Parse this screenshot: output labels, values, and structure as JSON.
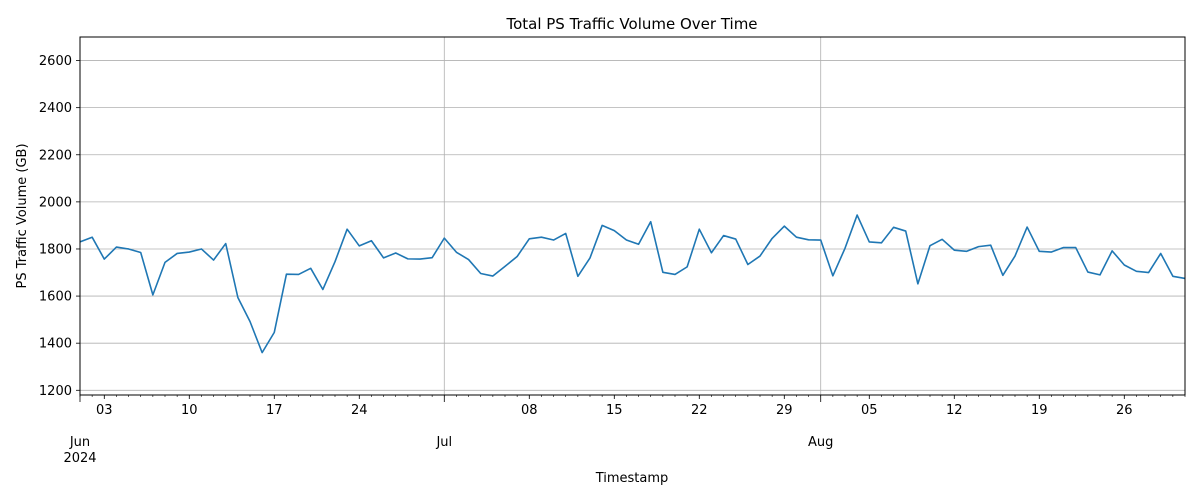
{
  "chart_data": {
    "type": "line",
    "title": "Total PS Traffic Volume Over Time",
    "xlabel": "Timestamp",
    "ylabel": "PS Traffic Volume (GB)",
    "ylim": [
      1180,
      2700
    ],
    "yticks": [
      1200,
      1400,
      1600,
      1800,
      2000,
      2200,
      2400,
      2600
    ],
    "grid": true,
    "line_color": "#1f77b4",
    "x_start_label": "2024-06-01",
    "x_end_label": "2024-08-31",
    "major_ticks": [
      {
        "date": "2024-06-01",
        "label": "Jun",
        "sublabel": "2024"
      },
      {
        "date": "2024-07-01",
        "label": "Jul",
        "sublabel": ""
      },
      {
        "date": "2024-08-01",
        "label": "Aug",
        "sublabel": ""
      }
    ],
    "minor_ticks": [
      {
        "date": "2024-06-03",
        "label": "03"
      },
      {
        "date": "2024-06-10",
        "label": "10"
      },
      {
        "date": "2024-06-17",
        "label": "17"
      },
      {
        "date": "2024-06-24",
        "label": "24"
      },
      {
        "date": "2024-07-08",
        "label": "08"
      },
      {
        "date": "2024-07-15",
        "label": "15"
      },
      {
        "date": "2024-07-22",
        "label": "22"
      },
      {
        "date": "2024-07-29",
        "label": "29"
      },
      {
        "date": "2024-08-05",
        "label": "05"
      },
      {
        "date": "2024-08-12",
        "label": "12"
      },
      {
        "date": "2024-08-19",
        "label": "19"
      },
      {
        "date": "2024-08-26",
        "label": "26"
      }
    ],
    "series": [
      {
        "name": "",
        "values": [
          1830,
          1850,
          1757,
          1808,
          1800,
          1785,
          1605,
          1743,
          1781,
          1787,
          1800,
          1753,
          1823,
          1594,
          1492,
          1360,
          1446,
          1693,
          1692,
          1718,
          1628,
          1746,
          1884,
          1813,
          1835,
          1762,
          1783,
          1758,
          1757,
          1763,
          1846,
          1786,
          1755,
          1696,
          1685,
          1726,
          1768,
          1843,
          1850,
          1838,
          1866,
          1684,
          1762,
          1900,
          1878,
          1838,
          1820,
          1916,
          1701,
          1692,
          1724,
          1884,
          1784,
          1857,
          1842,
          1734,
          1770,
          1845,
          1897,
          1850,
          1839,
          1838,
          1686,
          1803,
          1944,
          1830,
          1826,
          1892,
          1876,
          1652,
          1814,
          1841,
          1795,
          1790,
          1810,
          1816,
          1688,
          1770,
          1893,
          1790,
          1787,
          1806,
          1806,
          1702,
          1690,
          1792,
          1732,
          1705,
          1700,
          1781,
          1684,
          1675
        ]
      }
    ]
  }
}
